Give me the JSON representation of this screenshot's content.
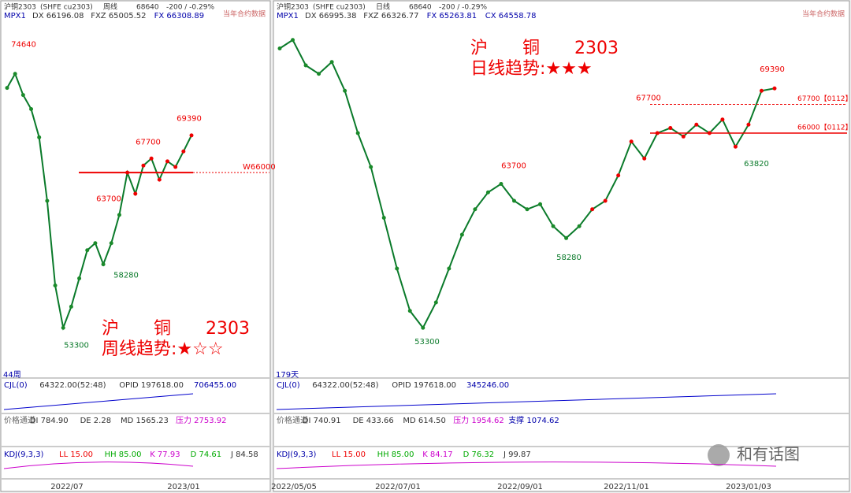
{
  "left_panel": {
    "header": {
      "symbol": "沪铜2303",
      "exchange": "(SHFE  cu2303)",
      "period": "周线",
      "last": "68640",
      "change": "-200 / -0.29%",
      "mode": "当年合约数据"
    },
    "mpx": {
      "name": "MPX1",
      "items": [
        "DX 66196.08",
        "FXZ 65005.52",
        "FX 66308.89"
      ]
    },
    "price_labels": [
      74640,
      67700,
      69390,
      63700,
      58280,
      53300
    ],
    "level_label": "W66000",
    "level": 66000,
    "bar_count": "44周",
    "title_lines": [
      "沪　　铜　　2303",
      "周线趋势:★☆☆"
    ],
    "close": [
      72000,
      73000,
      71500,
      70500,
      68500,
      64000,
      58000,
      55000,
      56500,
      58500,
      60500,
      61000,
      59500,
      61000,
      63000,
      66000,
      64500,
      66500,
      67000,
      65500,
      66800,
      66400,
      67500,
      68640
    ],
    "cjl": [
      "CJL(0)",
      "64322.00(52:48)",
      "OPID 197618.00",
      "706455.00"
    ],
    "channel": [
      "价格通道",
      "DI 784.90",
      "DE 2.28",
      "MD 1565.23",
      "压力 2753.92"
    ],
    "kdj": [
      "KDJ(9,3,3)",
      "LL 15.00",
      "HH 85.00",
      "K 77.93",
      "D 74.61",
      "J 84.58"
    ],
    "dates": [
      "2022/07",
      "2023/01"
    ]
  },
  "right_panel": {
    "header": {
      "symbol": "沪铜2303",
      "exchange": "(SHFE  cu2303)",
      "period": "日线",
      "last": "68640",
      "change": "-200 / -0.29%",
      "mode": "当年合约数据"
    },
    "mpx": {
      "name": "MPX1",
      "items": [
        "DX 66995.38",
        "FXZ 66326.77",
        "FX 65263.81",
        "CX 64558.78"
      ]
    },
    "price_labels": [
      67700,
      63700,
      69390,
      58280,
      53300,
      63820
    ],
    "levels": [
      {
        "value": 67700,
        "label": "67700【0112】"
      },
      {
        "value": 66000,
        "label": "66000【0112】"
      }
    ],
    "bar_count": "179天",
    "title_lines": [
      "沪　　铜　　2303",
      "日线趋势:★★★"
    ],
    "close": [
      71000,
      71500,
      70000,
      69500,
      70200,
      68500,
      66000,
      64000,
      61000,
      58000,
      55500,
      54500,
      56000,
      58000,
      60000,
      61500,
      62500,
      63000,
      62000,
      61500,
      61800,
      60500,
      59800,
      60500,
      61500,
      62000,
      63500,
      65500,
      64500,
      66000,
      66300,
      65800,
      66500,
      66000,
      66800,
      65200,
      66500,
      68500,
      68640
    ],
    "cjl": [
      "CJL(0)",
      "64322.00(52:48)",
      "OPID 197618.00",
      "345246.00"
    ],
    "channel": [
      "价格通道",
      "DI 740.91",
      "DE 433.66",
      "MD 614.50",
      "压力 1954.62",
      "支撑 1074.62"
    ],
    "kdj": [
      "KDJ(9,3,3)",
      "LL 15.00",
      "HH 85.00",
      "K 84.17",
      "D 76.32",
      "J 99.87"
    ],
    "dates": [
      "2022/05/05",
      "2022/07/01",
      "2022/09/01",
      "2022/11/01",
      "2023/01/03"
    ]
  },
  "watermark": "和有话图"
}
